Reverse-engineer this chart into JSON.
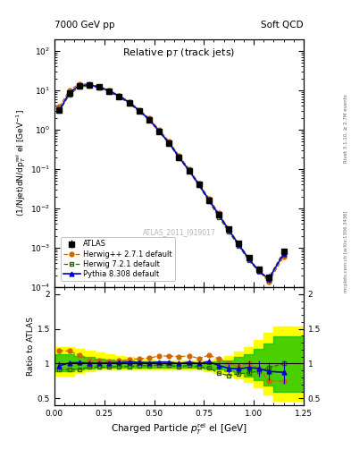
{
  "title_top_left": "7000 GeV pp",
  "title_top_right": "Soft QCD",
  "main_title": "Relative p$_{T}$ (track jets)",
  "xlabel": "Charged Particle $p^{\\text{rel}}_T$ el [GeV]",
  "ylabel_main": "(1/Njet)dN/dp$^{\\text{rel}}_T$ el [GeV$^{-1}$]",
  "ylabel_ratio": "Ratio to ATLAS",
  "watermark": "ATLAS_2011_I919017",
  "right_label": "Rivet 3.1.10, ≥ 2.7M events",
  "right_label2": "mcplots.cern.ch [arXiv:1306.3436]",
  "atlas_x": [
    0.025,
    0.075,
    0.125,
    0.175,
    0.225,
    0.275,
    0.325,
    0.375,
    0.425,
    0.475,
    0.525,
    0.575,
    0.625,
    0.675,
    0.725,
    0.775,
    0.825,
    0.875,
    0.925,
    0.975,
    1.025,
    1.075,
    1.15
  ],
  "atlas_y": [
    3.2,
    8.5,
    13.0,
    13.5,
    12.0,
    9.5,
    7.0,
    4.8,
    3.0,
    1.8,
    0.9,
    0.45,
    0.2,
    0.09,
    0.04,
    0.016,
    0.007,
    0.003,
    0.0013,
    0.00055,
    0.00028,
    0.00018,
    0.0008
  ],
  "atlas_yerr": [
    0.25,
    0.45,
    0.55,
    0.55,
    0.45,
    0.35,
    0.25,
    0.18,
    0.12,
    0.08,
    0.04,
    0.02,
    0.009,
    0.005,
    0.002,
    0.001,
    0.0004,
    0.00018,
    0.0001,
    5e-05,
    4e-05,
    4e-05,
    0.00012
  ],
  "herwig_x": [
    0.025,
    0.075,
    0.125,
    0.175,
    0.225,
    0.275,
    0.325,
    0.375,
    0.425,
    0.475,
    0.525,
    0.575,
    0.625,
    0.675,
    0.725,
    0.775,
    0.825,
    0.875,
    0.925,
    0.975,
    1.025,
    1.075,
    1.15
  ],
  "herwig_y": [
    3.8,
    10.0,
    14.5,
    14.2,
    12.5,
    9.8,
    7.3,
    5.1,
    3.2,
    1.95,
    1.0,
    0.5,
    0.22,
    0.1,
    0.043,
    0.018,
    0.0075,
    0.003,
    0.00125,
    0.00055,
    0.00026,
    0.000135,
    0.0006
  ],
  "herwig7_x": [
    0.025,
    0.075,
    0.125,
    0.175,
    0.225,
    0.275,
    0.325,
    0.375,
    0.425,
    0.475,
    0.525,
    0.575,
    0.625,
    0.675,
    0.725,
    0.775,
    0.825,
    0.875,
    0.925,
    0.975,
    1.025,
    1.075,
    1.15
  ],
  "herwig7_y": [
    2.9,
    7.8,
    12.0,
    12.8,
    11.4,
    9.0,
    6.7,
    4.6,
    2.9,
    1.75,
    0.88,
    0.44,
    0.19,
    0.088,
    0.038,
    0.015,
    0.006,
    0.0025,
    0.0011,
    0.00048,
    0.00025,
    0.00017,
    0.0008
  ],
  "pythia_x": [
    0.025,
    0.075,
    0.125,
    0.175,
    0.225,
    0.275,
    0.325,
    0.375,
    0.425,
    0.475,
    0.525,
    0.575,
    0.625,
    0.675,
    0.725,
    0.775,
    0.825,
    0.875,
    0.925,
    0.975,
    1.025,
    1.075,
    1.15
  ],
  "pythia_y": [
    3.1,
    8.6,
    13.2,
    13.6,
    12.1,
    9.6,
    7.1,
    4.9,
    3.05,
    1.82,
    0.92,
    0.46,
    0.2,
    0.092,
    0.04,
    0.0165,
    0.0068,
    0.0028,
    0.0012,
    0.00052,
    0.00026,
    0.00016,
    0.0007
  ],
  "herwig_ratio": [
    1.19,
    1.18,
    1.12,
    1.05,
    1.04,
    1.03,
    1.04,
    1.06,
    1.07,
    1.08,
    1.11,
    1.11,
    1.1,
    1.11,
    1.075,
    1.12,
    1.07,
    1.0,
    0.96,
    1.0,
    0.93,
    0.75,
    0.75
  ],
  "herwig7_ratio": [
    0.91,
    0.92,
    0.92,
    0.95,
    0.95,
    0.95,
    0.96,
    0.96,
    0.97,
    0.97,
    0.98,
    0.98,
    0.95,
    0.98,
    0.95,
    0.94,
    0.86,
    0.83,
    0.85,
    0.87,
    0.89,
    0.94,
    1.0
  ],
  "pythia_ratio": [
    0.97,
    1.01,
    1.015,
    1.007,
    1.008,
    1.011,
    1.014,
    1.021,
    1.017,
    1.011,
    1.022,
    1.022,
    1.0,
    1.022,
    1.0,
    1.031,
    0.971,
    0.933,
    0.923,
    0.945,
    0.929,
    0.889,
    0.875
  ],
  "pythia_ratio_err": [
    0.06,
    0.035,
    0.032,
    0.027,
    0.026,
    0.026,
    0.026,
    0.026,
    0.026,
    0.026,
    0.026,
    0.026,
    0.026,
    0.03,
    0.03,
    0.04,
    0.05,
    0.065,
    0.085,
    0.095,
    0.11,
    0.13,
    0.17
  ],
  "band_yellow_edges": [
    0.0,
    0.05,
    0.1,
    0.15,
    0.2,
    0.25,
    0.3,
    0.35,
    0.4,
    0.45,
    0.5,
    0.55,
    0.6,
    0.65,
    0.7,
    0.75,
    0.8,
    0.85,
    0.9,
    0.95,
    1.0,
    1.05,
    1.1,
    1.3
  ],
  "band_yellow_lo": [
    0.82,
    0.82,
    0.87,
    0.89,
    0.91,
    0.91,
    0.91,
    0.91,
    0.91,
    0.91,
    0.91,
    0.91,
    0.91,
    0.91,
    0.91,
    0.89,
    0.86,
    0.83,
    0.79,
    0.73,
    0.66,
    0.56,
    0.46,
    0.46
  ],
  "band_yellow_hi": [
    1.24,
    1.24,
    1.21,
    1.19,
    1.16,
    1.14,
    1.11,
    1.09,
    1.07,
    1.06,
    1.05,
    1.04,
    1.04,
    1.04,
    1.04,
    1.05,
    1.07,
    1.11,
    1.17,
    1.24,
    1.34,
    1.44,
    1.54,
    1.62
  ],
  "band_green_edges": [
    0.0,
    0.05,
    0.1,
    0.15,
    0.2,
    0.25,
    0.3,
    0.35,
    0.4,
    0.45,
    0.5,
    0.55,
    0.6,
    0.65,
    0.7,
    0.75,
    0.8,
    0.85,
    0.9,
    0.95,
    1.0,
    1.05,
    1.1,
    1.3
  ],
  "band_green_lo": [
    0.89,
    0.89,
    0.91,
    0.93,
    0.94,
    0.94,
    0.94,
    0.94,
    0.94,
    0.94,
    0.94,
    0.94,
    0.94,
    0.94,
    0.94,
    0.93,
    0.91,
    0.89,
    0.86,
    0.81,
    0.76,
    0.69,
    0.59,
    0.56
  ],
  "band_green_hi": [
    1.14,
    1.14,
    1.11,
    1.09,
    1.07,
    1.06,
    1.05,
    1.04,
    1.03,
    1.03,
    1.02,
    1.02,
    1.02,
    1.02,
    1.02,
    1.02,
    1.03,
    1.05,
    1.09,
    1.14,
    1.21,
    1.29,
    1.39,
    1.44
  ],
  "color_atlas": "#000000",
  "color_herwig": "#cc6600",
  "color_herwig7": "#336600",
  "color_pythia": "#0000cc",
  "color_band_yellow": "#ffff00",
  "color_band_green": "#00bb00",
  "xlim": [
    0.0,
    1.25
  ],
  "ylim_main": [
    0.0001,
    200
  ],
  "ylim_ratio": [
    0.4,
    2.1
  ],
  "ratio_yticks": [
    0.5,
    1.0,
    1.5,
    2.0
  ],
  "ratio_yticklabels": [
    "0.5",
    "1",
    "1.5",
    "2"
  ]
}
